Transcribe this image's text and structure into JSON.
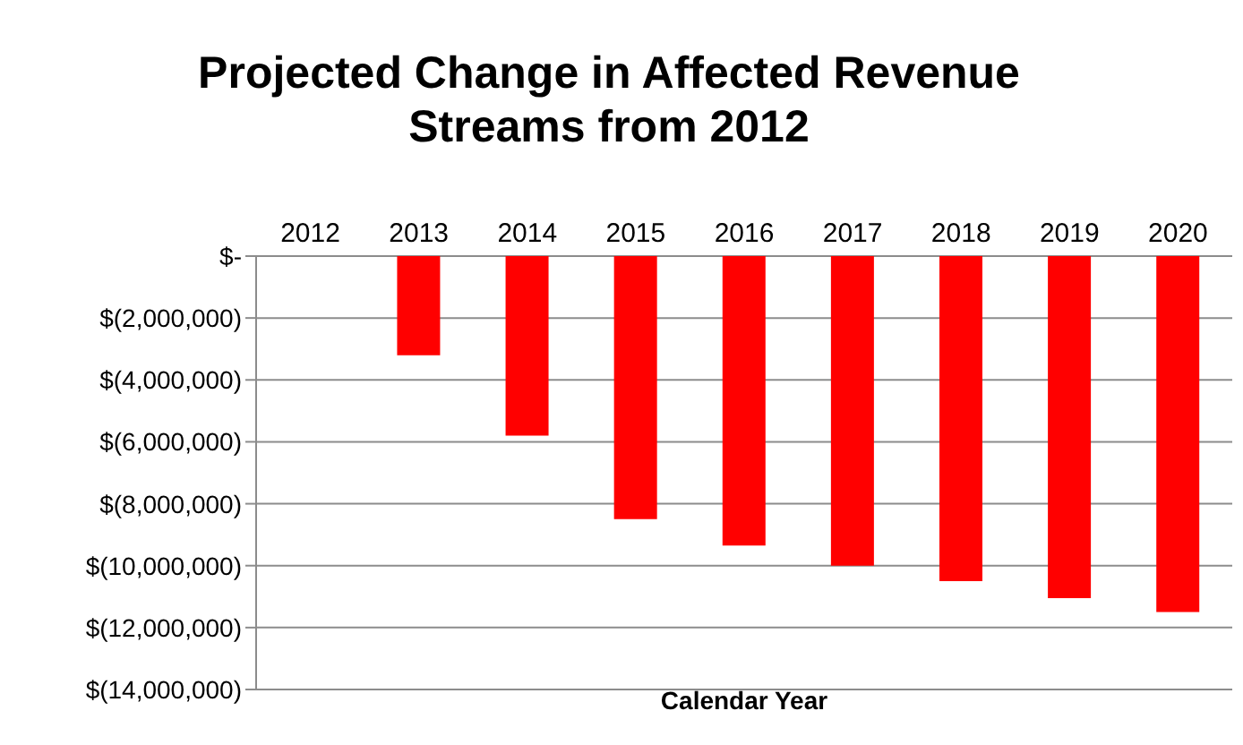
{
  "chart_data": {
    "type": "bar",
    "title": "Projected Change in Affected Revenue Streams from 2012",
    "xlabel": "Calendar Year",
    "categories": [
      "2012",
      "2013",
      "2014",
      "2015",
      "2016",
      "2017",
      "2018",
      "2019",
      "2020"
    ],
    "values": [
      0,
      -3200000,
      -5800000,
      -8500000,
      -9350000,
      -10000000,
      -10500000,
      -11050000,
      -11500000
    ],
    "color": "#ff0000",
    "ylim": [
      -14000000,
      0
    ],
    "yticks": [
      {
        "value": 0,
        "label": "$-"
      },
      {
        "value": -2000000,
        "label": "$(2,000,000)"
      },
      {
        "value": -4000000,
        "label": "$(4,000,000)"
      },
      {
        "value": -6000000,
        "label": "$(6,000,000)"
      },
      {
        "value": -8000000,
        "label": "$(8,000,000)"
      },
      {
        "value": -10000000,
        "label": "$(10,000,000)"
      },
      {
        "value": -12000000,
        "label": "$(12,000,000)"
      },
      {
        "value": -14000000,
        "label": "$(14,000,000)"
      }
    ],
    "grid": "y"
  }
}
